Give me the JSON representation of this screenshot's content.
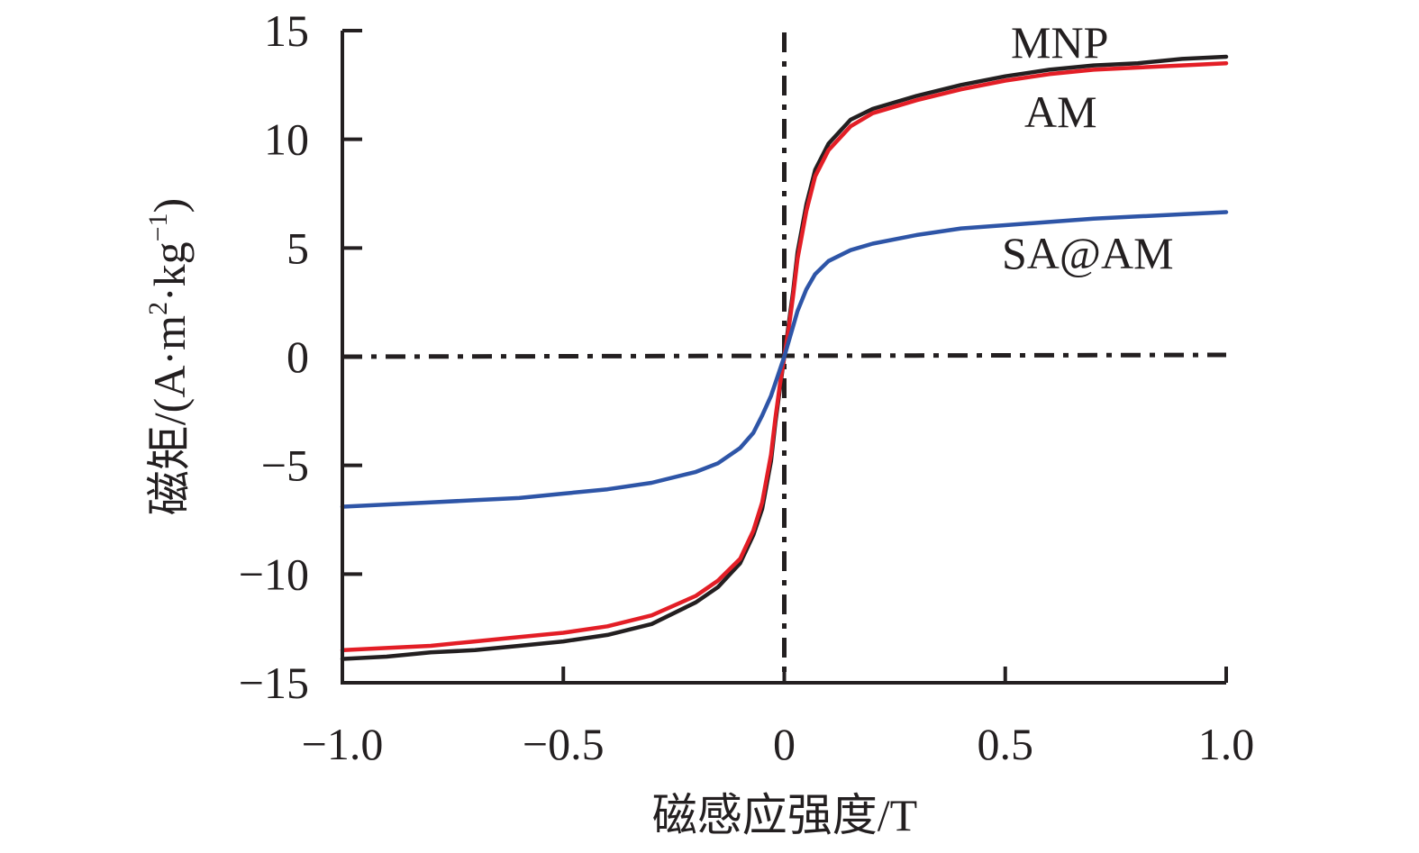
{
  "chart_data": {
    "type": "line",
    "title": "",
    "xlabel": "磁感应强度/T",
    "ylabel": "磁矩/(A·m²·kg⁻¹)",
    "ylabel_parts": {
      "prefix": "磁矩/(A",
      "dot1": "·",
      "m": "m",
      "sup2": "2",
      "dot2": "·",
      "kg": "kg",
      "supm1": "−1",
      "suffix": ")"
    },
    "xlim": [
      -1.0,
      1.0
    ],
    "ylim": [
      -15,
      15
    ],
    "xticks": [
      -1.0,
      -0.5,
      0,
      0.5,
      1.0
    ],
    "xtick_labels": [
      "−1.0",
      "−0.5",
      "0",
      "0.5",
      "1.0"
    ],
    "yticks": [
      15,
      10,
      5,
      0,
      -5,
      -10,
      -15
    ],
    "ytick_labels": [
      "15",
      "10",
      "5",
      "0",
      "−5",
      "−10",
      "−15"
    ],
    "grid": false,
    "reference_lines": {
      "x": 0,
      "y": 0,
      "style": "dash-dot"
    },
    "series": [
      {
        "name": "MNP",
        "color": "#231f20",
        "x": [
          -1.0,
          -0.9,
          -0.8,
          -0.7,
          -0.6,
          -0.5,
          -0.4,
          -0.3,
          -0.2,
          -0.15,
          -0.1,
          -0.07,
          -0.05,
          -0.03,
          -0.02,
          -0.01,
          0,
          0.01,
          0.02,
          0.03,
          0.05,
          0.07,
          0.1,
          0.15,
          0.2,
          0.3,
          0.4,
          0.5,
          0.6,
          0.7,
          0.8,
          0.9,
          1.0
        ],
        "y": [
          -13.9,
          -13.8,
          -13.6,
          -13.5,
          -13.3,
          -13.1,
          -12.8,
          -12.3,
          -11.3,
          -10.6,
          -9.5,
          -8.2,
          -7.0,
          -4.8,
          -3.0,
          -1.5,
          0,
          1.5,
          3.0,
          4.8,
          7.0,
          8.6,
          9.8,
          10.9,
          11.4,
          12.0,
          12.5,
          12.9,
          13.2,
          13.4,
          13.5,
          13.7,
          13.8
        ]
      },
      {
        "name": "AM",
        "color": "#e31e26",
        "x": [
          -1.0,
          -0.9,
          -0.8,
          -0.7,
          -0.6,
          -0.5,
          -0.4,
          -0.3,
          -0.2,
          -0.15,
          -0.1,
          -0.07,
          -0.05,
          -0.03,
          -0.02,
          -0.01,
          0,
          0.01,
          0.02,
          0.03,
          0.05,
          0.07,
          0.1,
          0.15,
          0.2,
          0.3,
          0.4,
          0.5,
          0.6,
          0.7,
          0.8,
          0.9,
          1.0
        ],
        "y": [
          -13.5,
          -13.4,
          -13.3,
          -13.1,
          -12.9,
          -12.7,
          -12.4,
          -11.9,
          -11.0,
          -10.3,
          -9.3,
          -8.0,
          -6.7,
          -4.5,
          -2.8,
          -1.3,
          0,
          1.3,
          2.8,
          4.5,
          6.7,
          8.3,
          9.5,
          10.6,
          11.2,
          11.8,
          12.3,
          12.7,
          13.0,
          13.2,
          13.3,
          13.4,
          13.5
        ]
      },
      {
        "name": "SA@AM",
        "color": "#2e55a7",
        "x": [
          -1.0,
          -0.9,
          -0.8,
          -0.7,
          -0.6,
          -0.5,
          -0.4,
          -0.3,
          -0.2,
          -0.15,
          -0.1,
          -0.07,
          -0.05,
          -0.03,
          -0.02,
          -0.01,
          0,
          0.01,
          0.02,
          0.03,
          0.05,
          0.07,
          0.1,
          0.15,
          0.2,
          0.3,
          0.4,
          0.5,
          0.6,
          0.7,
          0.8,
          0.9,
          1.0
        ],
        "y": [
          -6.9,
          -6.8,
          -6.7,
          -6.6,
          -6.5,
          -6.3,
          -6.1,
          -5.8,
          -5.3,
          -4.9,
          -4.2,
          -3.5,
          -2.7,
          -1.8,
          -1.2,
          -0.6,
          0,
          0.7,
          1.4,
          2.1,
          3.1,
          3.8,
          4.4,
          4.9,
          5.2,
          5.6,
          5.9,
          6.05,
          6.2,
          6.35,
          6.45,
          6.55,
          6.65
        ]
      }
    ],
    "annotations": [
      {
        "text": "MNP",
        "series": "MNP"
      },
      {
        "text": "AM",
        "series": "AM"
      },
      {
        "text": "SA@AM",
        "series": "SA@AM"
      }
    ]
  }
}
